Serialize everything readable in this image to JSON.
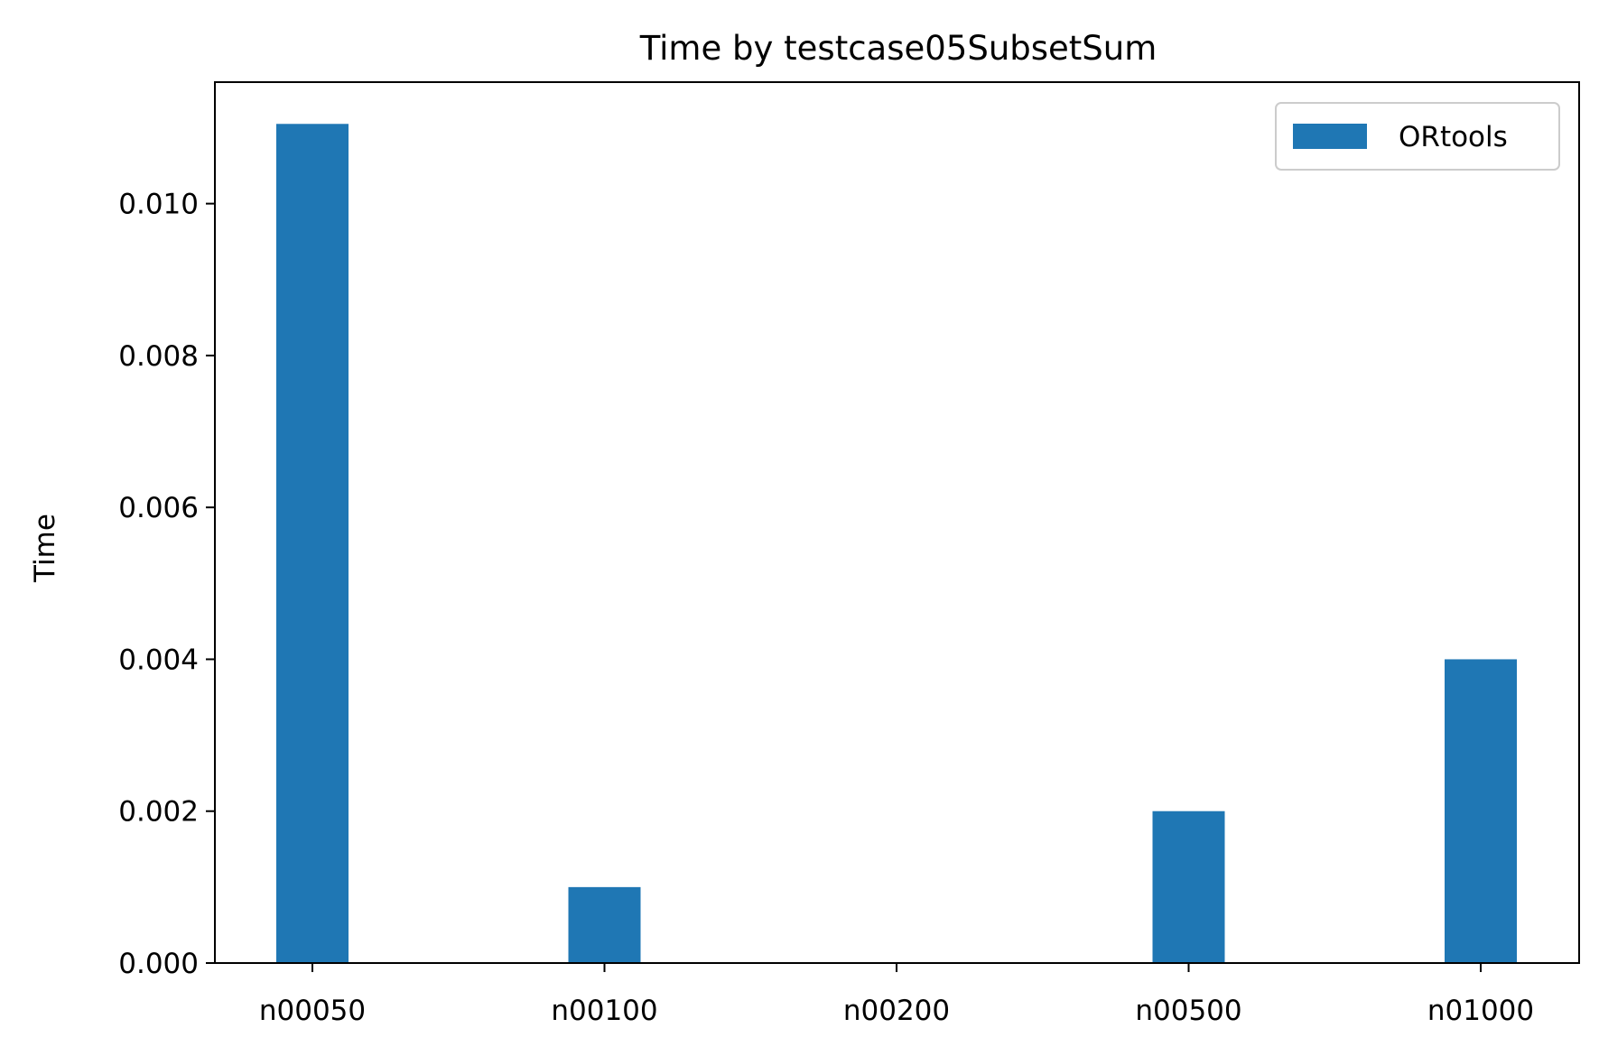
{
  "chart_data": {
    "type": "bar",
    "title": "Time by testcase05SubsetSum",
    "xlabel": "",
    "ylabel": "Time",
    "categories": [
      "n00050",
      "n00100",
      "n00200",
      "n00500",
      "n01000"
    ],
    "series": [
      {
        "name": "ORtools",
        "values": [
          0.01105,
          0.001,
          0.0,
          0.002,
          0.004
        ],
        "color": "#1f77b4"
      }
    ],
    "ylim": [
      0,
      0.0116
    ],
    "yticks": [
      0.0,
      0.002,
      0.004,
      0.006,
      0.008,
      0.01
    ],
    "ytick_labels": [
      "0.000",
      "0.002",
      "0.004",
      "0.006",
      "0.008",
      "0.010"
    ],
    "grid": false,
    "legend": "top-right"
  }
}
